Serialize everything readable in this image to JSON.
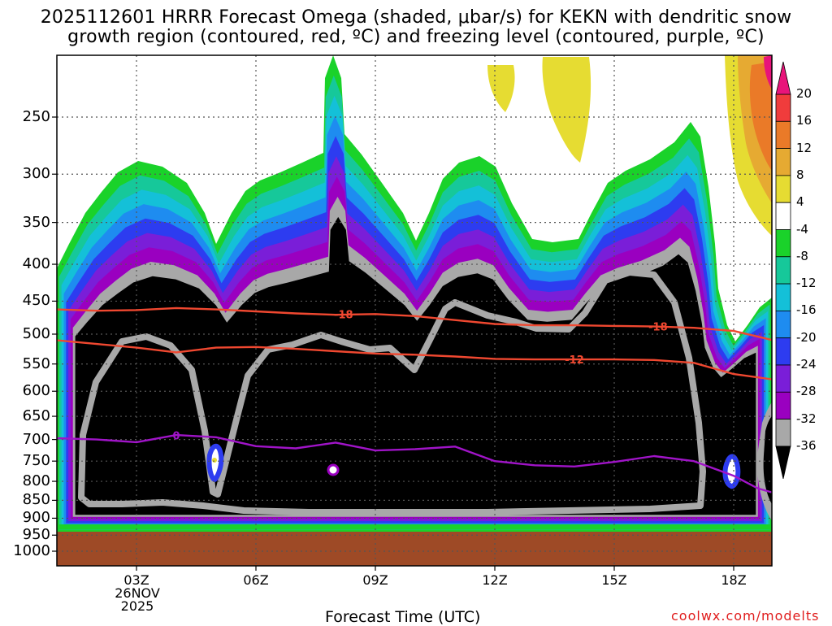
{
  "title": {
    "line1": "2025112601 HRRR Forecast Omega (shaded, μbar/s) for KEKN with dendritic snow",
    "line2": "growth region (contoured, red, ºC) and freezing level (contoured, purple, ºC)"
  },
  "credit": "coolwx.com/modelts",
  "chart_data": {
    "type": "heatmap",
    "title": "2025112601 HRRR Forecast Omega (shaded, μbar/s) for KEKN with dendritic snow growth region (contoured, red, ºC) and freezing level (contoured, purple, ºC)",
    "xlabel": "Forecast Time (UTC)",
    "ylabel": "",
    "x_ticks": [
      "03Z",
      "06Z",
      "09Z",
      "12Z",
      "15Z",
      "18Z"
    ],
    "x_date_label": [
      "26NOV",
      "2025"
    ],
    "y_ticks": [
      250,
      300,
      350,
      400,
      450,
      500,
      550,
      600,
      650,
      700,
      750,
      800,
      850,
      900,
      950,
      1000
    ],
    "y_scale": "log-pressure (inverted)",
    "grid": true,
    "colorbar": {
      "levels": [
        -36,
        -32,
        -28,
        -24,
        -20,
        -16,
        -12,
        -8,
        -4,
        4,
        8,
        12,
        16,
        20
      ],
      "labels": [
        "20",
        "16",
        "12",
        "8",
        "4",
        "-4",
        "-8",
        "-12",
        "-16",
        "-20",
        "-24",
        "-28",
        "-32",
        "-36"
      ],
      "colors": [
        "#000000",
        "#a8a8a8",
        "#9a00c0",
        "#7a1ed8",
        "#2d3cf0",
        "#1e8cf0",
        "#14c0d8",
        "#16c89a",
        "#1ad22a",
        "#ffffff",
        "#e6dc32",
        "#e6aa32",
        "#ea7a28",
        "#f03c3c",
        "#e8147a"
      ]
    },
    "contours": [
      {
        "label": "-18",
        "color": "#f04830",
        "x": [
          1.0,
          2.0,
          3.0,
          4.0,
          5.0,
          6.0,
          7.0,
          8.0,
          9.0,
          10.0,
          11.0,
          12.0,
          13.0,
          14.0,
          15.0,
          16.0,
          17.0,
          18.0,
          19.0
        ],
        "y": [
          462,
          464,
          463,
          460,
          462,
          465,
          468,
          470,
          469,
          472,
          478,
          484,
          486,
          486,
          487,
          488,
          490,
          495,
          510
        ]
      },
      {
        "label": "-12",
        "color": "#f04830",
        "x": [
          1.0,
          2.0,
          3.0,
          4.0,
          5.0,
          6.0,
          7.0,
          8.0,
          9.0,
          10.0,
          11.0,
          12.0,
          13.0,
          14.0,
          15.0,
          16.0,
          17.0,
          18.0,
          19.0
        ],
        "y": [
          510,
          516,
          522,
          530,
          522,
          521,
          524,
          528,
          532,
          534,
          537,
          541,
          542,
          542,
          542,
          543,
          548,
          568,
          578
        ]
      },
      {
        "label": "0",
        "color": "#a014c8",
        "x": [
          1.0,
          2.0,
          3.0,
          4.0,
          5.0,
          6.0,
          7.0,
          8.0,
          9.0,
          10.0,
          11.0,
          12.0,
          13.0,
          14.0,
          15.0,
          16.0,
          17.0,
          18.0,
          18.6,
          19.0
        ],
        "y": [
          697,
          700,
          706,
          690,
          695,
          715,
          720,
          707,
          725,
          722,
          716,
          750,
          760,
          763,
          752,
          738,
          750,
          786,
          818,
          830
        ]
      }
    ]
  }
}
